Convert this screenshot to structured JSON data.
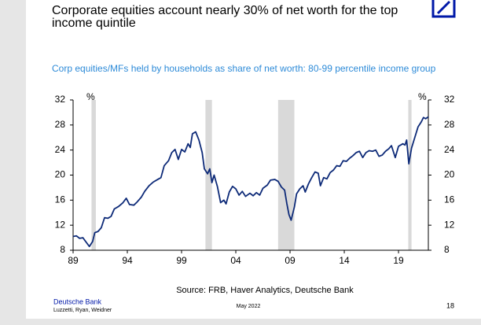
{
  "chart_data": {
    "type": "line",
    "title": "Corporate equities account nearly 30% of net worth for the top income quintile",
    "subtitle": "Corp equities/MFs held by households as share of net worth: 80-99 percentile income group",
    "y_unit": "%",
    "source": "Source: FRB, Haver Analytics, Deutsche Bank",
    "x": [
      1989.0,
      1989.3,
      1989.6,
      1989.9,
      1990.2,
      1990.5,
      1990.8,
      1991.0,
      1991.3,
      1991.6,
      1991.9,
      1992.2,
      1992.5,
      1992.8,
      1993.2,
      1993.6,
      1993.9,
      1994.2,
      1994.6,
      1994.9,
      1995.3,
      1995.6,
      1996.0,
      1996.4,
      1996.8,
      1997.1,
      1997.4,
      1997.8,
      1998.1,
      1998.4,
      1998.7,
      1999.0,
      1999.3,
      1999.6,
      1999.8,
      2000.0,
      2000.3,
      2000.6,
      2000.9,
      2001.1,
      2001.4,
      2001.6,
      2001.8,
      2002.0,
      2002.3,
      2002.6,
      2002.9,
      2003.1,
      2003.4,
      2003.7,
      2004.0,
      2004.3,
      2004.6,
      2004.9,
      2005.3,
      2005.6,
      2005.9,
      2006.2,
      2006.5,
      2006.9,
      2007.2,
      2007.6,
      2007.9,
      2008.2,
      2008.5,
      2008.7,
      2008.9,
      2009.1,
      2009.4,
      2009.6,
      2009.9,
      2010.2,
      2010.4,
      2010.7,
      2011.0,
      2011.3,
      2011.6,
      2011.8,
      2012.1,
      2012.4,
      2012.7,
      2013.0,
      2013.3,
      2013.6,
      2013.9,
      2014.2,
      2014.5,
      2014.8,
      2015.1,
      2015.4,
      2015.7,
      2016.0,
      2016.3,
      2016.6,
      2016.9,
      2017.2,
      2017.5,
      2017.8,
      2018.1,
      2018.35,
      2018.7,
      2019.0,
      2019.4,
      2019.6,
      2019.75,
      2019.95,
      2020.2,
      2020.5,
      2020.8,
      2021.1,
      2021.3,
      2021.5,
      2021.75
    ],
    "series": [
      {
        "color": "#0d2a78",
        "values": [
          10.2,
          10.3,
          9.9,
          10.0,
          9.3,
          8.6,
          9.4,
          10.8,
          11.0,
          11.6,
          13.2,
          13.1,
          13.4,
          14.6,
          15.0,
          15.6,
          16.3,
          15.3,
          15.2,
          15.7,
          16.5,
          17.4,
          18.3,
          18.9,
          19.3,
          19.6,
          21.5,
          22.3,
          23.6,
          24.1,
          22.5,
          24.1,
          23.7,
          25.0,
          24.4,
          26.6,
          26.9,
          25.6,
          23.6,
          21.0,
          20.2,
          21.0,
          18.8,
          20.0,
          18.2,
          15.6,
          16.0,
          15.4,
          17.3,
          18.2,
          17.8,
          16.8,
          17.4,
          16.6,
          17.1,
          16.7,
          17.2,
          16.8,
          17.9,
          18.4,
          19.2,
          19.3,
          19.0,
          18.1,
          17.6,
          15.5,
          13.7,
          12.8,
          14.9,
          17.0,
          17.8,
          18.3,
          17.3,
          18.6,
          19.6,
          20.5,
          20.3,
          18.3,
          19.6,
          19.4,
          20.4,
          20.8,
          21.5,
          21.4,
          22.3,
          22.2,
          22.7,
          23.1,
          23.6,
          23.8,
          22.8,
          23.6,
          23.9,
          23.8,
          24.0,
          23.0,
          23.2,
          23.8,
          24.2,
          24.7,
          22.8,
          24.6,
          25.0,
          24.8,
          25.6,
          21.8,
          24.3,
          26.0,
          27.7,
          28.5,
          29.2,
          29.0,
          29.3
        ]
      }
    ],
    "shaded_periods": [
      [
        1990.7,
        1991.1
      ],
      [
        2001.2,
        2001.8
      ],
      [
        2007.9,
        2009.4
      ],
      [
        2019.9,
        2020.2
      ]
    ],
    "shade_color": "#d9d9d9",
    "xlim": [
      1989,
      2021.75
    ],
    "xticks": [
      {
        "value": 1989,
        "label": "89"
      },
      {
        "value": 1994,
        "label": "94"
      },
      {
        "value": 1999,
        "label": "99"
      },
      {
        "value": 2004,
        "label": "04"
      },
      {
        "value": 2009,
        "label": "09"
      },
      {
        "value": 2014,
        "label": "14"
      },
      {
        "value": 2019,
        "label": "19"
      }
    ],
    "ylim": [
      8,
      32
    ],
    "yticks": [
      8,
      12,
      16,
      20,
      24,
      28,
      32
    ],
    "y2lim": [
      8,
      32
    ],
    "y2ticks": [
      8,
      12,
      16,
      20,
      24,
      28,
      32
    ]
  },
  "footer": {
    "company": "Deutsche Bank",
    "authors": "Luzzetti, Ryan, Weidner",
    "date": "May 2022",
    "page": "18"
  }
}
